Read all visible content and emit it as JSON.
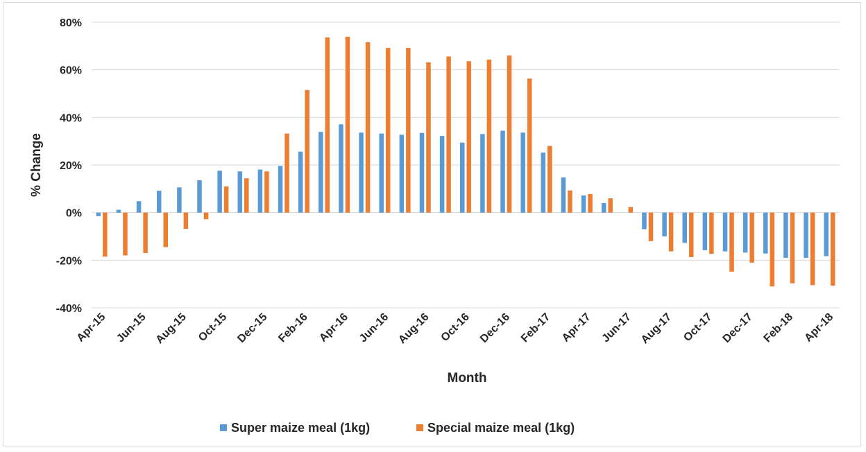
{
  "chart_data": {
    "type": "bar",
    "title": "",
    "xlabel": "Month",
    "ylabel": "% Change",
    "ylim": [
      -40,
      80
    ],
    "yticks": [
      -40,
      -20,
      0,
      20,
      40,
      60,
      80
    ],
    "ytick_labels": [
      "-40%",
      "-20%",
      "0%",
      "20%",
      "40%",
      "60%",
      "80%"
    ],
    "grid": true,
    "legend_position": "bottom",
    "categories": [
      "Apr-15",
      "May-15",
      "Jun-15",
      "Jul-15",
      "Aug-15",
      "Sep-15",
      "Oct-15",
      "Nov-15",
      "Dec-15",
      "Jan-16",
      "Feb-16",
      "Mar-16",
      "Apr-16",
      "May-16",
      "Jun-16",
      "Jul-16",
      "Aug-16",
      "Sep-16",
      "Oct-16",
      "Nov-16",
      "Dec-16",
      "Jan-17",
      "Feb-17",
      "Mar-17",
      "Apr-17",
      "May-17",
      "Jun-17",
      "Jul-17",
      "Aug-17",
      "Sep-17",
      "Oct-17",
      "Nov-17",
      "Dec-17",
      "Jan-18",
      "Feb-18",
      "Mar-18",
      "Apr-18"
    ],
    "shown_tick_labels": [
      "Apr-15",
      "Jun-15",
      "Aug-15",
      "Oct-15",
      "Dec-15",
      "Feb-16",
      "Apr-16",
      "Jun-16",
      "Aug-16",
      "Oct-16",
      "Dec-16",
      "Feb-17",
      "Apr-17",
      "Jun-17",
      "Aug-17",
      "Oct-17",
      "Dec-17",
      "Feb-18",
      "Apr-18"
    ],
    "series": [
      {
        "name": "Super maize meal (1kg)",
        "color": "#5b9bd5",
        "values": [
          -1.5,
          1.2,
          4.8,
          9.2,
          10.6,
          13.6,
          17.6,
          17.3,
          18.1,
          19.6,
          25.6,
          33.9,
          37.1,
          33.6,
          33.2,
          32.7,
          33.5,
          32.2,
          29.4,
          33.0,
          34.4,
          33.6,
          25.2,
          14.8,
          7.2,
          4.0,
          0,
          -7.0,
          -10.0,
          -12.7,
          -15.8,
          -16.3,
          -16.8,
          -17.2,
          -19.0,
          -19.0,
          -18.3
        ]
      },
      {
        "name": "Special maize meal (1kg)",
        "color": "#ed7d31",
        "values": [
          -18.5,
          -18.0,
          -17.0,
          -14.5,
          -6.8,
          -2.8,
          11.0,
          14.4,
          17.3,
          33.2,
          51.5,
          73.6,
          73.9,
          71.6,
          69.2,
          69.2,
          63.1,
          65.6,
          63.6,
          64.3,
          66.0,
          56.3,
          28.0,
          9.3,
          7.8,
          6.0,
          2.3,
          -12.0,
          -16.3,
          -18.7,
          -17.3,
          -24.8,
          -21.0,
          -31.0,
          -29.7,
          -30.5,
          -30.7
        ]
      }
    ]
  }
}
